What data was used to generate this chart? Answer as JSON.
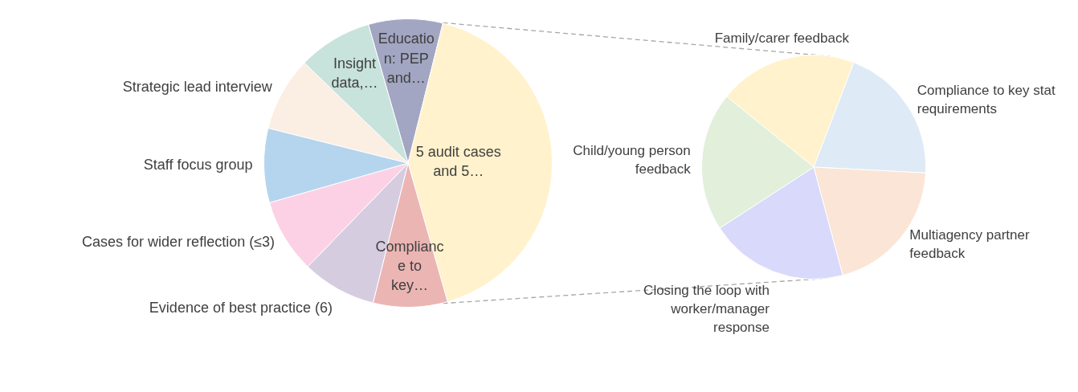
{
  "chart_data": [
    {
      "type": "pie",
      "categories": [
        "Educatio n: PEP and…",
        "5 audit cases and 5…",
        "Complianc e to key…",
        "Evidence of best practice (6)",
        "Cases for wider reflection (≤3)",
        "Staff focus group",
        "Strategic lead interview",
        "Insight data,…"
      ],
      "values": [
        8.33,
        41.7,
        8.33,
        8.33,
        8.33,
        8.33,
        8.33,
        8.33
      ],
      "colors": [
        "#a2a6c2",
        "#fff2cc",
        "#eab5b3",
        "#d6cce0",
        "#fcd1e5",
        "#b5d5ee",
        "#fbeee2",
        "#c8e2dc"
      ]
    },
    {
      "type": "pie",
      "categories": [
        "Family/carer feedback",
        "Compliance to key stat requirements",
        "Multiagency partner feedback",
        "Closing the loop with worker/manager response",
        "Child/young person feedback"
      ],
      "values": [
        20,
        20,
        20,
        20,
        20
      ],
      "colors": [
        "#fff2cc",
        "#deeaf6",
        "#fbe5d6",
        "#d9d9fb",
        "#e2efda"
      ]
    }
  ]
}
